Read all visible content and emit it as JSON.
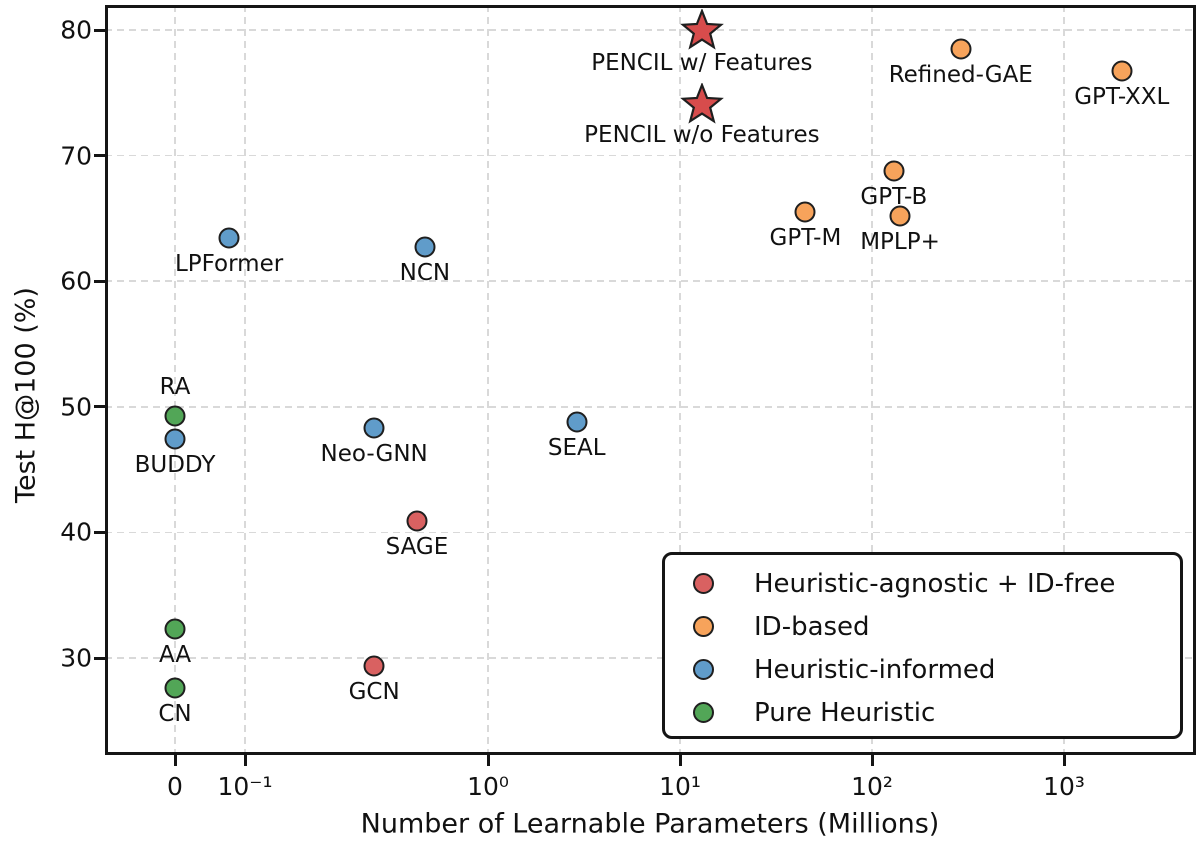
{
  "chart_data": {
    "type": "scatter",
    "title": "",
    "xlabel": "Number of Learnable Parameters (Millions)",
    "ylabel": "Test H@100 (%)",
    "x_scale": "symlog (linear segment at 0, log decades from 0.1 to 1000+)",
    "ylim": [
      22,
      82
    ],
    "grid": "dashed light-gray on both axes",
    "legend_position": "lower right",
    "x_ticks": [
      {
        "label": "0",
        "value": 0
      },
      {
        "label": "10⁻¹",
        "value": 0.1
      },
      {
        "label": "10⁰",
        "value": 1
      },
      {
        "label": "10¹",
        "value": 10
      },
      {
        "label": "10²",
        "value": 100
      },
      {
        "label": "10³",
        "value": 1000
      }
    ],
    "y_ticks": [
      {
        "label": "30",
        "value": 30
      },
      {
        "label": "40",
        "value": 40
      },
      {
        "label": "50",
        "value": 50
      },
      {
        "label": "60",
        "value": 60
      },
      {
        "label": "70",
        "value": 70
      },
      {
        "label": "80",
        "value": 80
      }
    ],
    "series": [
      {
        "name": "Heuristic-agnostic + ID-free",
        "color": "#d96161",
        "points": [
          {
            "label": "PENCIL w/ Features",
            "x": 13,
            "y": 79.8,
            "marker": "star",
            "color": "#d74c4c",
            "label_dy": 30
          },
          {
            "label": "PENCIL w/o Features",
            "x": 13,
            "y": 73.9,
            "marker": "star",
            "color": "#d74c4c",
            "label_dy": 28
          },
          {
            "label": "SAGE",
            "x": 0.51,
            "y": 40.9
          },
          {
            "label": "GCN",
            "x": 0.34,
            "y": 29.4
          }
        ]
      },
      {
        "name": "ID-based",
        "color": "#f7a35b",
        "points": [
          {
            "label": "Refined-GAE",
            "x": 290,
            "y": 78.5
          },
          {
            "label": "GPT-XXL",
            "x": 2000,
            "y": 76.7
          },
          {
            "label": "GPT-B",
            "x": 130,
            "y": 68.8
          },
          {
            "label": "GPT-M",
            "x": 45,
            "y": 65.5
          },
          {
            "label": "MPLP+",
            "x": 140,
            "y": 65.2
          }
        ]
      },
      {
        "name": "Heuristic-informed",
        "color": "#609cca",
        "points": [
          {
            "label": "LPFormer",
            "x": 0.086,
            "y": 63.4
          },
          {
            "label": "NCN",
            "x": 0.55,
            "y": 62.7
          },
          {
            "label": "Neo-GNN",
            "x": 0.34,
            "y": 48.3
          },
          {
            "label": "SEAL",
            "x": 2.9,
            "y": 48.8
          },
          {
            "label": "BUDDY",
            "x": 0,
            "y": 47.4
          }
        ]
      },
      {
        "name": "Pure Heuristic",
        "color": "#52a657",
        "points": [
          {
            "label": "RA",
            "x": 0,
            "y": 49.3,
            "label_dy": -29
          },
          {
            "label": "AA",
            "x": 0,
            "y": 32.3
          },
          {
            "label": "CN",
            "x": 0,
            "y": 27.6
          }
        ]
      }
    ]
  }
}
